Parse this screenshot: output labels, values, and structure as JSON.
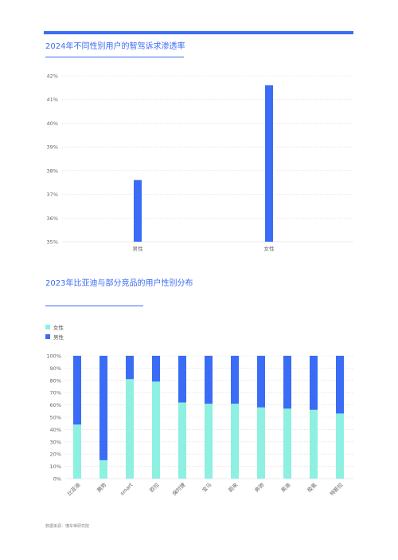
{
  "colors": {
    "accent": "#3b6cf6",
    "female": "#8ef0e0",
    "male": "#3b6cf6",
    "grid": "#d8d8d8"
  },
  "chart1": {
    "title": "2024年不同性别用户的智驾诉求渗透率",
    "chart_data": {
      "type": "bar",
      "categories": [
        "男性",
        "女性"
      ],
      "values": [
        37.6,
        41.6
      ],
      "ylim": [
        35,
        42
      ],
      "yticks": [
        "35%",
        "36%",
        "37%",
        "38%",
        "39%",
        "40%",
        "41%",
        "42%"
      ],
      "grid": true
    }
  },
  "chart2": {
    "title": "2023年比亚迪与部分竞品的用户性别分布",
    "legend": [
      {
        "name": "女性",
        "color": "#8ef0e0"
      },
      {
        "name": "男性",
        "color": "#3b6cf6"
      }
    ],
    "chart_data": {
      "type": "bar",
      "stacked": true,
      "categories": [
        "比亚迪",
        "腾势",
        "smart",
        "欧拉",
        "保时捷",
        "宝马",
        "蔚来",
        "奔驰",
        "奥迪",
        "极氪",
        "特斯拉"
      ],
      "series": [
        {
          "name": "女性",
          "values": [
            44,
            15,
            81,
            79,
            62,
            61,
            61,
            58,
            57,
            56,
            53
          ]
        },
        {
          "name": "男性",
          "values": [
            56,
            85,
            19,
            21,
            38,
            39,
            39,
            42,
            43,
            44,
            47
          ]
        }
      ],
      "ylim": [
        0,
        100
      ],
      "yticks": [
        "0%",
        "10%",
        "20%",
        "30%",
        "40%",
        "50%",
        "60%",
        "70%",
        "80%",
        "90%",
        "100%"
      ],
      "legend_position": "top-left",
      "grid": true
    }
  },
  "source": "数据来源：懂车帝研究院"
}
